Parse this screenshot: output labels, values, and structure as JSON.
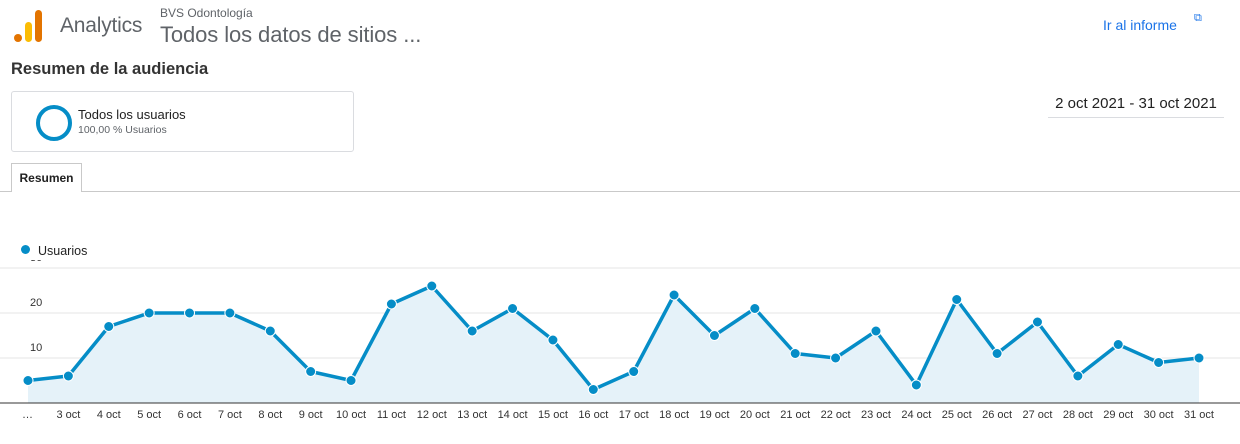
{
  "header": {
    "app_name": "Analytics",
    "account": "BVS Odontología",
    "property": "Todos los datos de sitios ...",
    "report_link": "Ir al informe",
    "report_link_icon": "external-link-icon"
  },
  "colors": {
    "accent": "#058dc7",
    "area": "#e5f2f9",
    "logo_bar_light": "#fbbc04",
    "logo_bar_dark": "#e37400",
    "link": "#1a73e8"
  },
  "page_title": "Resumen de la audiencia",
  "segment": {
    "name": "Todos los usuarios",
    "detail": "100,00 % Usuarios"
  },
  "date_range": "2 oct 2021 - 31 oct 2021",
  "tabs": [
    {
      "label": "Resumen",
      "active": true
    }
  ],
  "chart_data": {
    "type": "area",
    "x": [
      "…",
      "3 oct",
      "4 oct",
      "5 oct",
      "6 oct",
      "7 oct",
      "8 oct",
      "9 oct",
      "10 oct",
      "11 oct",
      "12 oct",
      "13 oct",
      "14 oct",
      "15 oct",
      "16 oct",
      "17 oct",
      "18 oct",
      "19 oct",
      "20 oct",
      "21 oct",
      "22 oct",
      "23 oct",
      "24 oct",
      "25 oct",
      "26 oct",
      "27 oct",
      "28 oct",
      "29 oct",
      "30 oct",
      "31 oct"
    ],
    "series": [
      {
        "name": "Usuarios",
        "values": [
          5,
          6,
          17,
          20,
          20,
          20,
          16,
          7,
          5,
          22,
          26,
          16,
          21,
          14,
          3,
          7,
          24,
          15,
          21,
          11,
          10,
          16,
          4,
          23,
          11,
          18,
          6,
          13,
          9,
          10
        ]
      }
    ],
    "yticks": [
      10,
      20,
      30
    ],
    "ylim": [
      0,
      30
    ],
    "grid": true,
    "legend_position": "top-left"
  }
}
